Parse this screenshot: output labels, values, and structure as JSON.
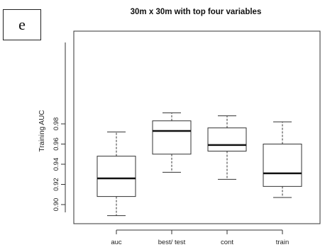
{
  "panel_label": "e",
  "chart_data": {
    "type": "boxplot",
    "title": "30m x 30m with top four variables",
    "xlabel": "",
    "ylabel": "Training AUC",
    "ylim": [
      0.885,
      0.995
    ],
    "yticks": [
      0.9,
      0.92,
      0.94,
      0.96,
      0.98
    ],
    "ytick_labels": [
      "0.90",
      "0.92",
      "0.94",
      "0.96",
      "0.98"
    ],
    "categories": [
      "auc",
      "best/ test",
      "cont",
      "train"
    ],
    "boxes": [
      {
        "category": "auc",
        "whisker_low": 0.889,
        "q1": 0.908,
        "median": 0.926,
        "q3": 0.948,
        "whisker_high": 0.972
      },
      {
        "category": "best/ test",
        "whisker_low": 0.932,
        "q1": 0.95,
        "median": 0.973,
        "q3": 0.983,
        "whisker_high": 0.991
      },
      {
        "category": "cont",
        "whisker_low": 0.925,
        "q1": 0.953,
        "median": 0.959,
        "q3": 0.976,
        "whisker_high": 0.988
      },
      {
        "category": "train",
        "whisker_low": 0.907,
        "q1": 0.918,
        "median": 0.931,
        "q3": 0.96,
        "whisker_high": 0.982
      }
    ],
    "grid": false,
    "legend": "none"
  }
}
